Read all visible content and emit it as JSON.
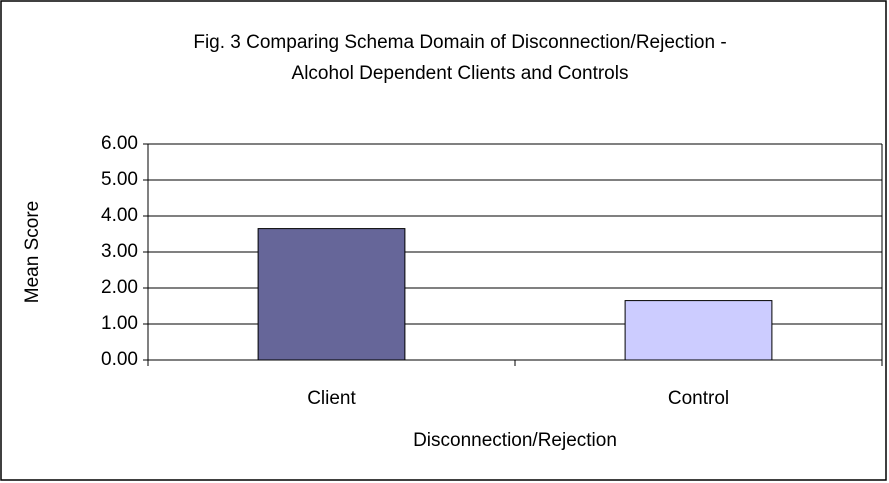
{
  "chart_data": {
    "type": "bar",
    "title": [
      "Fig. 3 Comparing Schema Domain of Disconnection/Rejection -",
      "Alcohol Dependent Clients and Controls"
    ],
    "categories": [
      "Client",
      "Control"
    ],
    "values": [
      3.65,
      1.65
    ],
    "colors": [
      "#666699",
      "#ccccff"
    ],
    "x_label": "Disconnection/Rejection",
    "y_label": "Mean Score",
    "ylim": [
      0,
      6
    ],
    "yticks": [
      {
        "value": 0,
        "label": "0.00"
      },
      {
        "value": 1,
        "label": "1.00"
      },
      {
        "value": 2,
        "label": "2.00"
      },
      {
        "value": 3,
        "label": "3.00"
      },
      {
        "value": 4,
        "label": "4.00"
      },
      {
        "value": 5,
        "label": "5.00"
      },
      {
        "value": 6,
        "label": "6.00"
      }
    ],
    "grid": true
  }
}
